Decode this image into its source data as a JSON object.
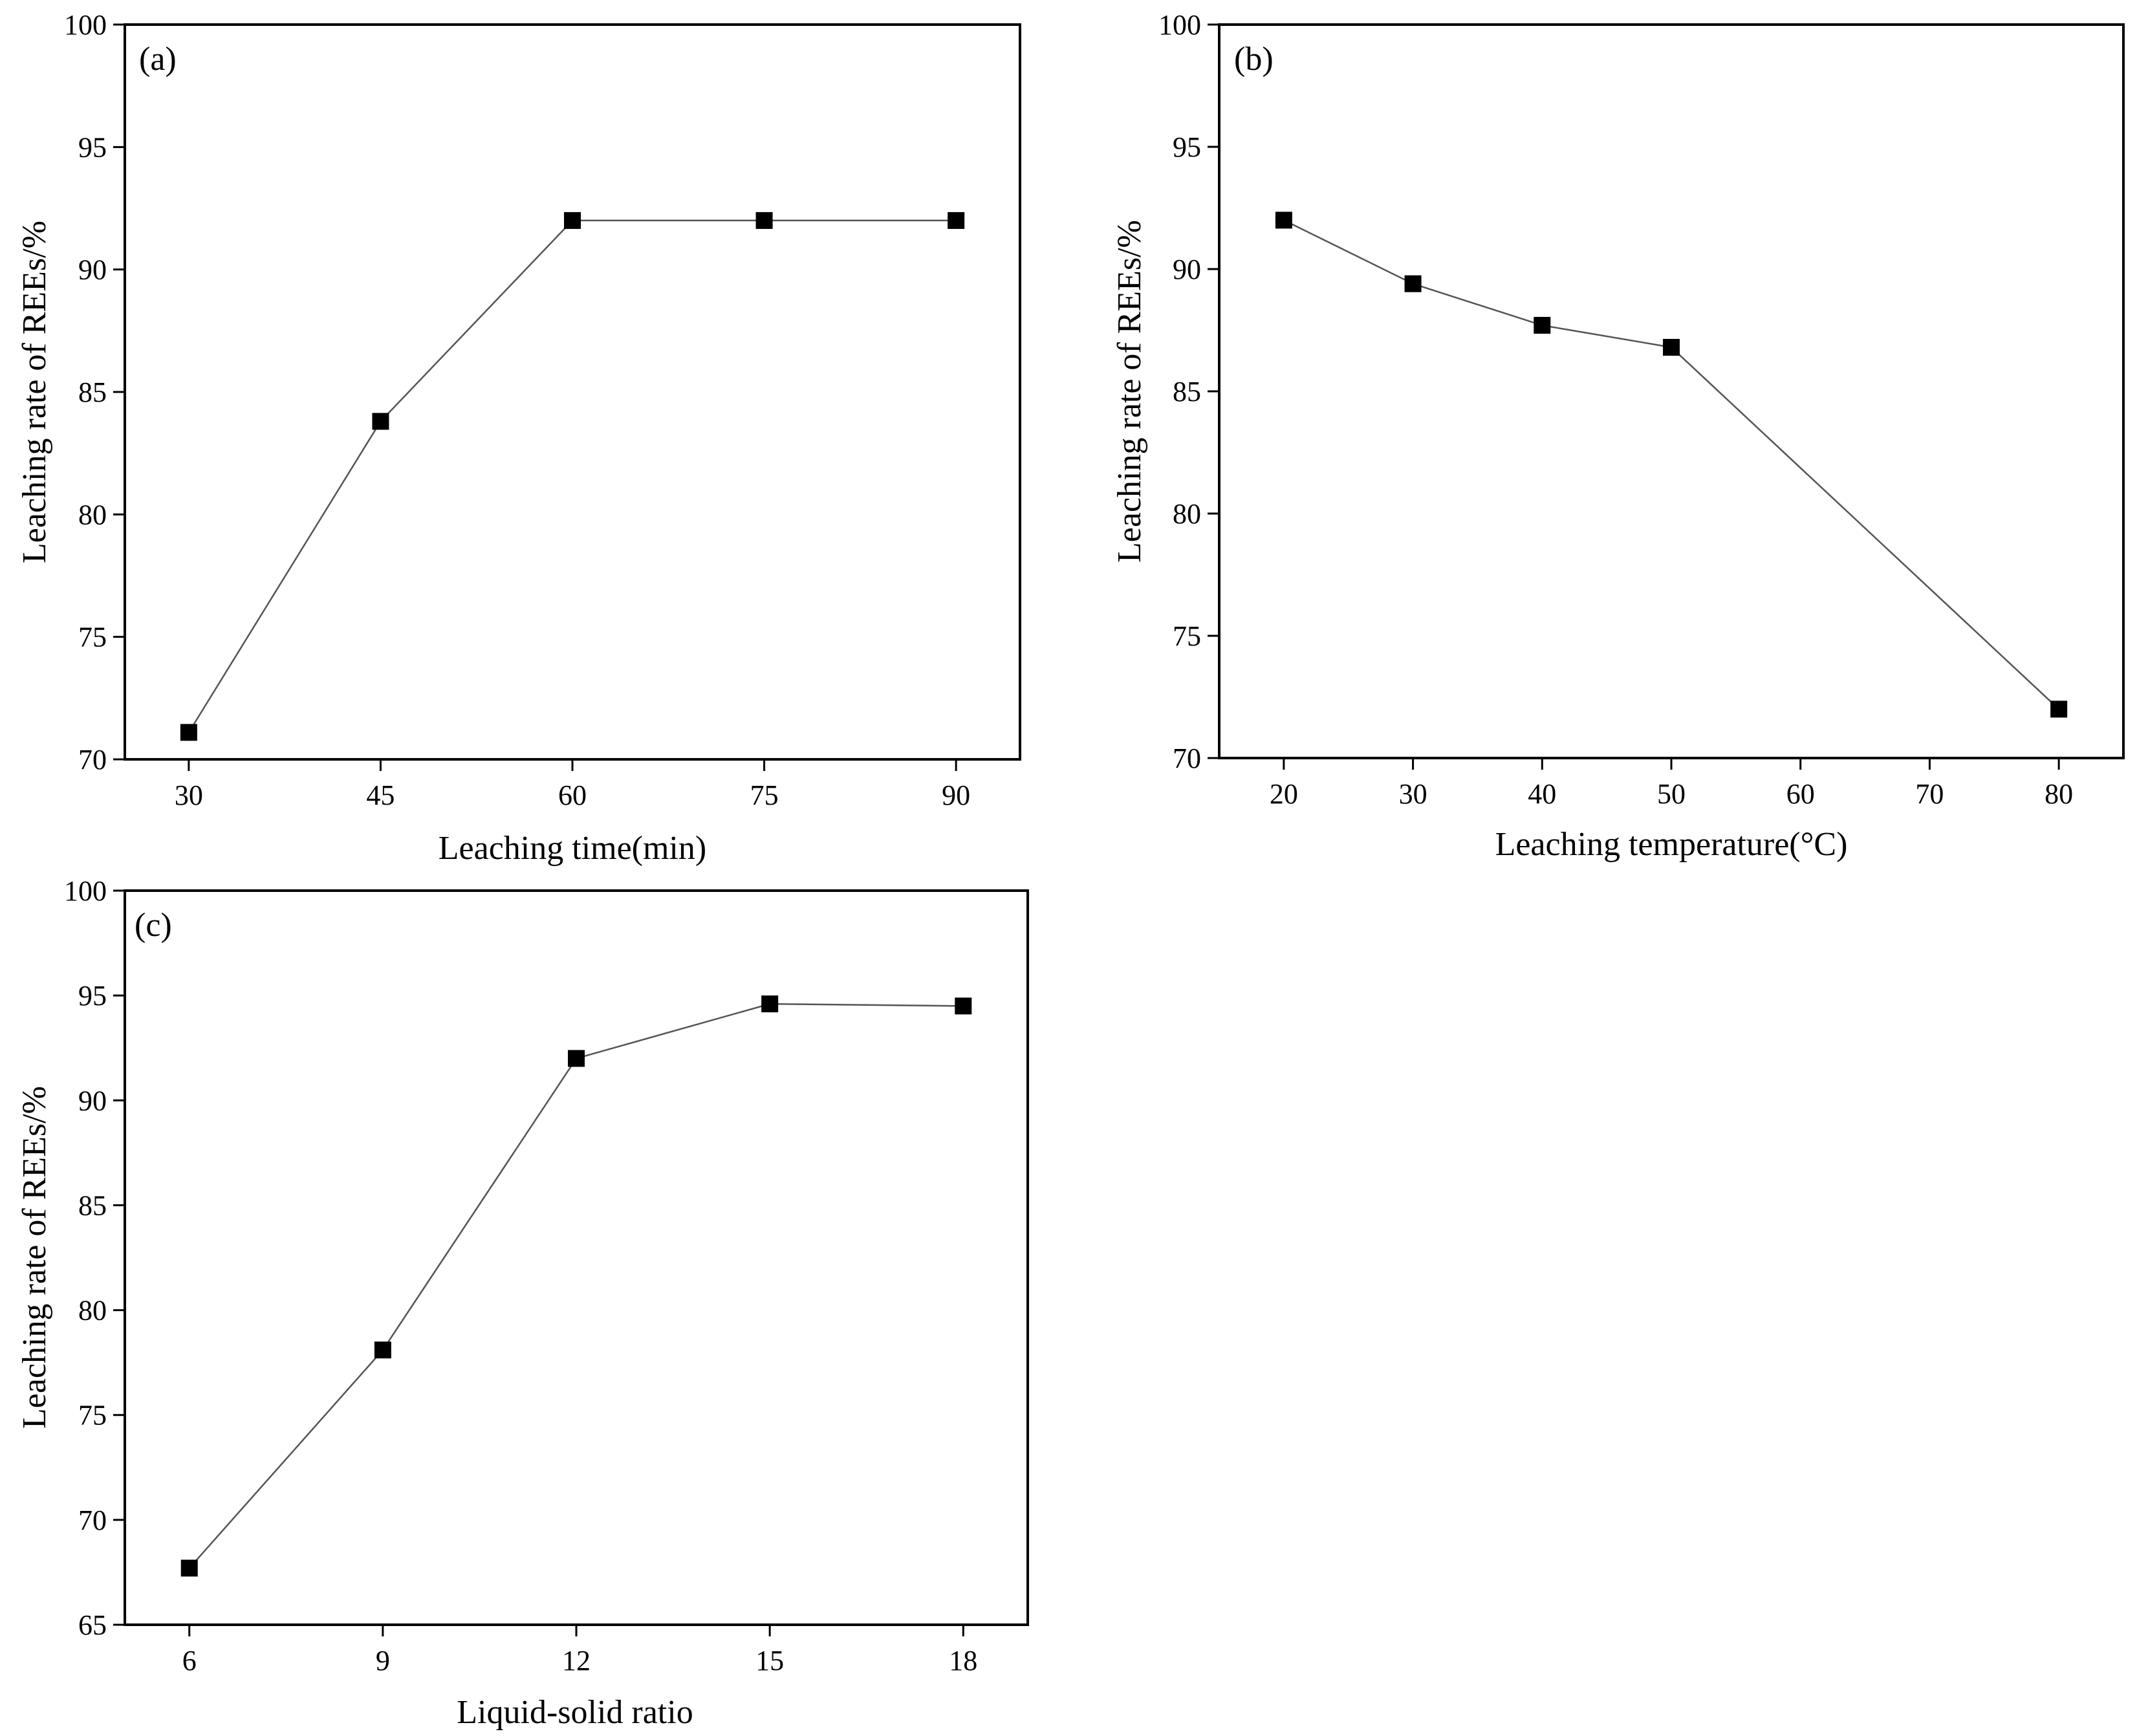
{
  "figure": {
    "panels": [
      "a",
      "b",
      "c"
    ]
  },
  "chart_data": [
    {
      "id": "a",
      "type": "line",
      "panel_label": "(a)",
      "xlabel": "Leaching time(min)",
      "ylabel": "Leaching rate of REEs/%",
      "x": [
        30,
        45,
        60,
        75,
        90
      ],
      "y": [
        71.1,
        83.8,
        92.0,
        92.0,
        92.0
      ],
      "xticks": [
        30,
        45,
        60,
        75,
        90
      ],
      "yticks": [
        70,
        75,
        80,
        85,
        90,
        95,
        100
      ],
      "xlim": [
        25,
        95
      ],
      "ylim": [
        70,
        100
      ],
      "marker": "square",
      "line_color": "#555555",
      "marker_color": "#000000"
    },
    {
      "id": "b",
      "type": "line",
      "panel_label": "(b)",
      "xlabel": "Leaching temperature(°C)",
      "ylabel": "Leaching rate of REEs/%",
      "x": [
        20,
        30,
        40,
        50,
        80
      ],
      "y": [
        92.0,
        89.4,
        87.7,
        86.8,
        72.0
      ],
      "xticks": [
        20,
        30,
        40,
        50,
        60,
        70,
        80
      ],
      "yticks": [
        70,
        75,
        80,
        85,
        90,
        95,
        100
      ],
      "xlim": [
        15,
        85
      ],
      "ylim": [
        70,
        100
      ],
      "marker": "square",
      "line_color": "#555555",
      "marker_color": "#000000"
    },
    {
      "id": "c",
      "type": "line",
      "panel_label": "(c)",
      "xlabel": "Liquid-solid ratio",
      "ylabel": "Leaching rate of REEs/%",
      "x": [
        6,
        9,
        12,
        15,
        18
      ],
      "y": [
        67.7,
        78.1,
        92.0,
        94.6,
        94.5
      ],
      "xticks": [
        6,
        9,
        12,
        15,
        18
      ],
      "yticks": [
        65,
        70,
        75,
        80,
        85,
        90,
        95,
        100
      ],
      "xlim": [
        5,
        19
      ],
      "ylim": [
        65,
        100
      ],
      "marker": "square",
      "line_color": "#555555",
      "marker_color": "#000000"
    }
  ]
}
